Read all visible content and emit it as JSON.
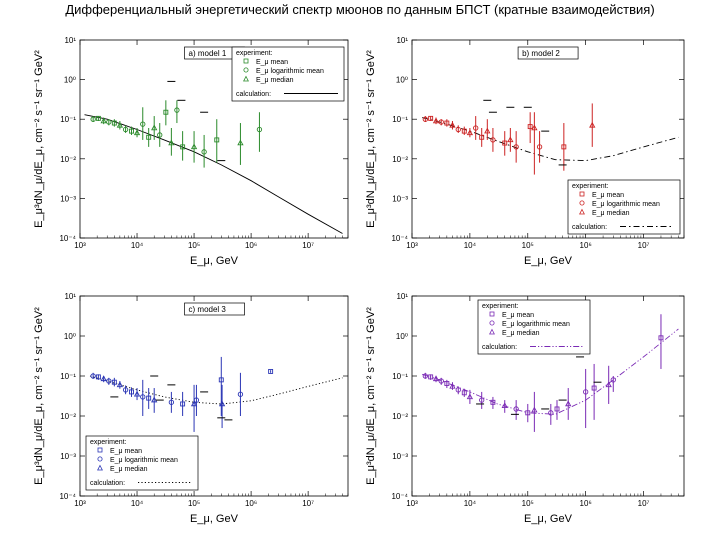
{
  "title": "Дифференциальный энергетический спектр мюонов по данным БПСТ (кратные взаимодействия)",
  "chart_data": [
    {
      "type": "scatter",
      "panel_title": "a) model 1",
      "color": "#2a8a2a",
      "curve_style": "solid",
      "curve_color": "#000000",
      "xlabel": "E_μ, GeV",
      "ylabel": "E_μ³dN_μ/dE_μ, cm⁻² s⁻¹ sr⁻¹ GeV²",
      "xlim": [
        1000,
        50000000
      ],
      "ylim": [
        0.0001,
        10
      ],
      "x_ticks": [
        "10³",
        "10⁴",
        "10⁵",
        "10⁶",
        "10⁷"
      ],
      "y_ticks": [
        "10⁻⁴",
        "10⁻³",
        "10⁻²",
        "10⁻¹",
        "10⁰",
        "10¹"
      ],
      "legend_position": "top-right",
      "legend": {
        "header": "experiment:",
        "items": [
          {
            "marker": "square",
            "label": "E_μ mean"
          },
          {
            "marker": "circle",
            "label": "E_μ logarithmic mean"
          },
          {
            "marker": "triangle",
            "label": "E_μ median"
          }
        ],
        "calc_label": "calculation:"
      },
      "curve": {
        "x": [
          1200,
          3000,
          10000,
          30000,
          100000,
          300000,
          1000000,
          3000000,
          10000000,
          40000000
        ],
        "y": [
          0.13,
          0.1,
          0.055,
          0.03,
          0.015,
          0.007,
          0.0028,
          0.0011,
          0.0004,
          0.00013
        ]
      },
      "points": [
        {
          "x": 1700,
          "y": 0.1,
          "lo": 0.085,
          "hi": 0.12
        },
        {
          "x": 2100,
          "y": 0.105,
          "lo": 0.09,
          "hi": 0.12
        },
        {
          "x": 2600,
          "y": 0.09,
          "lo": 0.075,
          "hi": 0.11
        },
        {
          "x": 3200,
          "y": 0.085,
          "lo": 0.07,
          "hi": 0.1
        },
        {
          "x": 4000,
          "y": 0.08,
          "lo": 0.065,
          "hi": 0.1
        },
        {
          "x": 5000,
          "y": 0.07,
          "lo": 0.055,
          "hi": 0.09
        },
        {
          "x": 6300,
          "y": 0.055,
          "lo": 0.045,
          "hi": 0.07
        },
        {
          "x": 8000,
          "y": 0.05,
          "lo": 0.04,
          "hi": 0.065
        },
        {
          "x": 10000,
          "y": 0.045,
          "lo": 0.035,
          "hi": 0.06
        },
        {
          "x": 12600,
          "y": 0.075,
          "lo": 0.03,
          "hi": 0.2
        },
        {
          "x": 16000,
          "y": 0.035,
          "lo": 0.02,
          "hi": 0.06
        },
        {
          "x": 20000,
          "y": 0.06,
          "lo": 0.03,
          "hi": 0.12
        },
        {
          "x": 25000,
          "y": 0.04,
          "lo": 0.02,
          "hi": 0.08
        },
        {
          "x": 32000,
          "y": 0.15,
          "lo": 0.07,
          "hi": 0.3
        },
        {
          "x": 40000,
          "y": 0.025,
          "lo": 0.012,
          "hi": 0.06
        },
        {
          "x": 50000,
          "y": 0.17,
          "lo": 0.08,
          "hi": 0.3
        },
        {
          "x": 63000,
          "y": 0.02,
          "lo": 0.009,
          "hi": 0.05
        },
        {
          "x": 100000,
          "y": 0.02,
          "lo": 0.008,
          "hi": 0.05
        },
        {
          "x": 150000,
          "y": 0.015,
          "lo": 0.006,
          "hi": 0.04
        },
        {
          "x": 250000,
          "y": 0.03,
          "lo": 0.008,
          "hi": 0.1
        },
        {
          "x": 650000,
          "y": 0.025,
          "lo": 0.007,
          "hi": 0.08
        },
        {
          "x": 1400000,
          "y": 0.055,
          "lo": 0.015,
          "hi": 0.15
        }
      ],
      "dashes": [
        {
          "x": 40000,
          "y": 0.9
        },
        {
          "x": 60000,
          "y": 0.3
        },
        {
          "x": 150000,
          "y": 0.15
        },
        {
          "x": 300000,
          "y": 0.009
        }
      ]
    },
    {
      "type": "scatter",
      "panel_title": "b) model 2",
      "color": "#cc2222",
      "curve_style": "dashdot",
      "curve_color": "#000000",
      "xlabel": "E_μ, GeV",
      "ylabel": "E_μ³dN_μ/dE_μ, cm⁻² s⁻¹ sr⁻¹ GeV²",
      "xlim": [
        1000,
        50000000
      ],
      "ylim": [
        0.0001,
        10
      ],
      "x_ticks": [
        "10³",
        "10⁴",
        "10⁵",
        "10⁶",
        "10⁷"
      ],
      "y_ticks": [
        "10⁻⁴",
        "10⁻³",
        "10⁻²",
        "10⁻¹",
        "10⁰",
        "10¹"
      ],
      "legend_position": "bottom-right",
      "legend": {
        "header": "experiment:",
        "items": [
          {
            "marker": "square",
            "label": "E_μ mean"
          },
          {
            "marker": "circle",
            "label": "E_μ logarithmic mean"
          },
          {
            "marker": "triangle",
            "label": "E_μ median"
          }
        ],
        "calc_label": "calculation:"
      },
      "curve": {
        "x": [
          1500,
          3000,
          10000,
          30000,
          100000,
          300000,
          1000000,
          3000000,
          10000000,
          40000000
        ],
        "y": [
          0.11,
          0.085,
          0.05,
          0.028,
          0.015,
          0.0095,
          0.009,
          0.012,
          0.02,
          0.035
        ]
      },
      "points": [
        {
          "x": 1700,
          "y": 0.1,
          "lo": 0.085,
          "hi": 0.12
        },
        {
          "x": 2100,
          "y": 0.105,
          "lo": 0.09,
          "hi": 0.12
        },
        {
          "x": 2600,
          "y": 0.09,
          "lo": 0.075,
          "hi": 0.11
        },
        {
          "x": 3200,
          "y": 0.085,
          "lo": 0.07,
          "hi": 0.1
        },
        {
          "x": 4000,
          "y": 0.08,
          "lo": 0.065,
          "hi": 0.1
        },
        {
          "x": 5000,
          "y": 0.07,
          "lo": 0.055,
          "hi": 0.09
        },
        {
          "x": 6300,
          "y": 0.055,
          "lo": 0.045,
          "hi": 0.07
        },
        {
          "x": 8000,
          "y": 0.05,
          "lo": 0.04,
          "hi": 0.065
        },
        {
          "x": 10000,
          "y": 0.045,
          "lo": 0.035,
          "hi": 0.06
        },
        {
          "x": 12600,
          "y": 0.06,
          "lo": 0.03,
          "hi": 0.12
        },
        {
          "x": 16000,
          "y": 0.035,
          "lo": 0.02,
          "hi": 0.06
        },
        {
          "x": 20000,
          "y": 0.05,
          "lo": 0.03,
          "hi": 0.1
        },
        {
          "x": 25000,
          "y": 0.03,
          "lo": 0.015,
          "hi": 0.06
        },
        {
          "x": 40000,
          "y": 0.025,
          "lo": 0.012,
          "hi": 0.05
        },
        {
          "x": 50000,
          "y": 0.03,
          "lo": 0.015,
          "hi": 0.06
        },
        {
          "x": 63000,
          "y": 0.02,
          "lo": 0.008,
          "hi": 0.05
        },
        {
          "x": 110000,
          "y": 0.065,
          "lo": 0.025,
          "hi": 0.15
        },
        {
          "x": 130000,
          "y": 0.06,
          "lo": 0.004,
          "hi": 0.15
        },
        {
          "x": 160000,
          "y": 0.02,
          "lo": 0.008,
          "hi": 0.05
        },
        {
          "x": 420000,
          "y": 0.02,
          "lo": 0.005,
          "hi": 0.08
        },
        {
          "x": 1300000,
          "y": 0.07,
          "lo": 0.02,
          "hi": 0.25
        }
      ],
      "dashes": [
        {
          "x": 20000,
          "y": 0.3
        },
        {
          "x": 25000,
          "y": 0.15
        },
        {
          "x": 50000,
          "y": 0.2
        },
        {
          "x": 100000,
          "y": 0.2
        },
        {
          "x": 200000,
          "y": 0.05
        },
        {
          "x": 400000,
          "y": 0.007
        }
      ]
    },
    {
      "type": "scatter",
      "panel_title": "c) model 3",
      "color": "#2a35b5",
      "curve_style": "dotted",
      "curve_color": "#000000",
      "xlabel": "E_μ, GeV",
      "ylabel": "E_μ³dN_μ/dE_μ, cm⁻² s⁻¹ sr⁻¹ GeV²",
      "xlim": [
        1000,
        50000000
      ],
      "ylim": [
        0.0001,
        10
      ],
      "x_ticks": [
        "10³",
        "10⁴",
        "10⁵",
        "10⁶",
        "10⁷"
      ],
      "y_ticks": [
        "10⁻⁴",
        "10⁻³",
        "10⁻²",
        "10⁻¹",
        "10⁰",
        "10¹"
      ],
      "legend_position": "bottom-left",
      "legend": {
        "header": "experiment:",
        "items": [
          {
            "marker": "square",
            "label": "E_μ mean"
          },
          {
            "marker": "circle",
            "label": "E_μ logarithmic mean"
          },
          {
            "marker": "triangle",
            "label": "E_μ median"
          }
        ],
        "calc_label": "calculation:"
      },
      "curve": {
        "x": [
          1500,
          3000,
          10000,
          30000,
          100000,
          300000,
          1000000,
          3000000,
          10000000,
          40000000
        ],
        "y": [
          0.1,
          0.075,
          0.045,
          0.03,
          0.022,
          0.02,
          0.024,
          0.035,
          0.055,
          0.09
        ]
      },
      "points": [
        {
          "x": 1700,
          "y": 0.1,
          "lo": 0.085,
          "hi": 0.12
        },
        {
          "x": 2100,
          "y": 0.095,
          "lo": 0.08,
          "hi": 0.11
        },
        {
          "x": 2600,
          "y": 0.085,
          "lo": 0.07,
          "hi": 0.1
        },
        {
          "x": 3200,
          "y": 0.075,
          "lo": 0.06,
          "hi": 0.09
        },
        {
          "x": 4000,
          "y": 0.07,
          "lo": 0.055,
          "hi": 0.09
        },
        {
          "x": 5000,
          "y": 0.06,
          "lo": 0.048,
          "hi": 0.075
        },
        {
          "x": 6300,
          "y": 0.045,
          "lo": 0.035,
          "hi": 0.058
        },
        {
          "x": 8000,
          "y": 0.04,
          "lo": 0.03,
          "hi": 0.052
        },
        {
          "x": 10000,
          "y": 0.035,
          "lo": 0.025,
          "hi": 0.05
        },
        {
          "x": 12600,
          "y": 0.03,
          "lo": 0.01,
          "hi": 0.08
        },
        {
          "x": 16000,
          "y": 0.028,
          "lo": 0.015,
          "hi": 0.05
        },
        {
          "x": 20000,
          "y": 0.025,
          "lo": 0.012,
          "hi": 0.05
        },
        {
          "x": 40000,
          "y": 0.022,
          "lo": 0.012,
          "hi": 0.04
        },
        {
          "x": 63000,
          "y": 0.02,
          "lo": 0.01,
          "hi": 0.04
        },
        {
          "x": 100000,
          "y": 0.02,
          "lo": 0.004,
          "hi": 0.06
        },
        {
          "x": 110000,
          "y": 0.025,
          "lo": 0.01,
          "hi": 0.06
        },
        {
          "x": 300000,
          "y": 0.08,
          "lo": 0.01,
          "hi": 0.3
        },
        {
          "x": 310000,
          "y": 0.02,
          "lo": 0.005,
          "hi": 0.06
        },
        {
          "x": 650000,
          "y": 0.035,
          "lo": 0.01,
          "hi": 0.12
        },
        {
          "x": 2200000,
          "y": 0.13,
          "lo": 0.12,
          "hi": 0.14
        }
      ],
      "dashes": [
        {
          "x": 4000,
          "y": 0.03
        },
        {
          "x": 20000,
          "y": 0.1
        },
        {
          "x": 25000,
          "y": 0.025
        },
        {
          "x": 40000,
          "y": 0.06
        },
        {
          "x": 150000,
          "y": 0.04
        },
        {
          "x": 300000,
          "y": 0.009
        },
        {
          "x": 400000,
          "y": 0.008
        }
      ]
    },
    {
      "type": "scatter",
      "panel_title": "d) model 4",
      "color": "#7a2ab5",
      "curve_style": "dashdotdot",
      "curve_color": "#7a2ab5",
      "xlabel": "E_μ, GeV",
      "ylabel": "E_μ³dN_μ/dE_μ, cm⁻² s⁻¹ sr⁻¹ GeV²",
      "xlim": [
        1000,
        50000000
      ],
      "ylim": [
        0.0001,
        10
      ],
      "x_ticks": [
        "10³",
        "10⁴",
        "10⁵",
        "10⁶",
        "10⁷"
      ],
      "y_ticks": [
        "10⁻⁴",
        "10⁻³",
        "10⁻²",
        "10⁻¹",
        "10⁰",
        "10¹"
      ],
      "legend_position": "top-left",
      "legend": {
        "header": "experiment:",
        "items": [
          {
            "marker": "square",
            "label": "E_μ mean"
          },
          {
            "marker": "circle",
            "label": "E_μ logarithmic mean"
          },
          {
            "marker": "triangle",
            "label": "E_μ median"
          }
        ],
        "calc_label": "calculation:"
      },
      "curve": {
        "x": [
          1500,
          3000,
          10000,
          30000,
          100000,
          300000,
          1000000,
          3000000,
          10000000,
          40000000
        ],
        "y": [
          0.11,
          0.08,
          0.04,
          0.02,
          0.012,
          0.011,
          0.025,
          0.08,
          0.3,
          1.5
        ]
      },
      "points": [
        {
          "x": 1700,
          "y": 0.1,
          "lo": 0.085,
          "hi": 0.12
        },
        {
          "x": 2100,
          "y": 0.095,
          "lo": 0.08,
          "hi": 0.11
        },
        {
          "x": 2600,
          "y": 0.085,
          "lo": 0.07,
          "hi": 0.1
        },
        {
          "x": 3200,
          "y": 0.075,
          "lo": 0.06,
          "hi": 0.09
        },
        {
          "x": 4000,
          "y": 0.065,
          "lo": 0.05,
          "hi": 0.08
        },
        {
          "x": 5000,
          "y": 0.055,
          "lo": 0.045,
          "hi": 0.07
        },
        {
          "x": 6300,
          "y": 0.045,
          "lo": 0.035,
          "hi": 0.055
        },
        {
          "x": 8000,
          "y": 0.038,
          "lo": 0.03,
          "hi": 0.048
        },
        {
          "x": 10000,
          "y": 0.03,
          "lo": 0.02,
          "hi": 0.045
        },
        {
          "x": 16000,
          "y": 0.025,
          "lo": 0.015,
          "hi": 0.04
        },
        {
          "x": 25000,
          "y": 0.022,
          "lo": 0.015,
          "hi": 0.03
        },
        {
          "x": 40000,
          "y": 0.018,
          "lo": 0.012,
          "hi": 0.025
        },
        {
          "x": 63000,
          "y": 0.015,
          "lo": 0.008,
          "hi": 0.025
        },
        {
          "x": 100000,
          "y": 0.012,
          "lo": 0.007,
          "hi": 0.02
        },
        {
          "x": 130000,
          "y": 0.014,
          "lo": 0.004,
          "hi": 0.04
        },
        {
          "x": 250000,
          "y": 0.012,
          "lo": 0.006,
          "hi": 0.02
        },
        {
          "x": 320000,
          "y": 0.015,
          "lo": 0.008,
          "hi": 0.025
        },
        {
          "x": 500000,
          "y": 0.02,
          "lo": 0.008,
          "hi": 0.05
        },
        {
          "x": 1000000,
          "y": 0.04,
          "lo": 0.005,
          "hi": 0.15
        },
        {
          "x": 1400000,
          "y": 0.05,
          "lo": 0.008,
          "hi": 0.2
        },
        {
          "x": 2500000,
          "y": 0.06,
          "lo": 0.02,
          "hi": 0.18
        },
        {
          "x": 3000000,
          "y": 0.08,
          "lo": 0.04,
          "hi": 0.1
        },
        {
          "x": 20000000,
          "y": 0.9,
          "lo": 0.15,
          "hi": 3.5
        }
      ],
      "dashes": [
        {
          "x": 15000,
          "y": 0.02
        },
        {
          "x": 60000,
          "y": 0.011
        },
        {
          "x": 200000,
          "y": 0.015
        },
        {
          "x": 400000,
          "y": 0.025
        },
        {
          "x": 800000,
          "y": 0.3
        },
        {
          "x": 1600000,
          "y": 0.07
        }
      ]
    }
  ]
}
